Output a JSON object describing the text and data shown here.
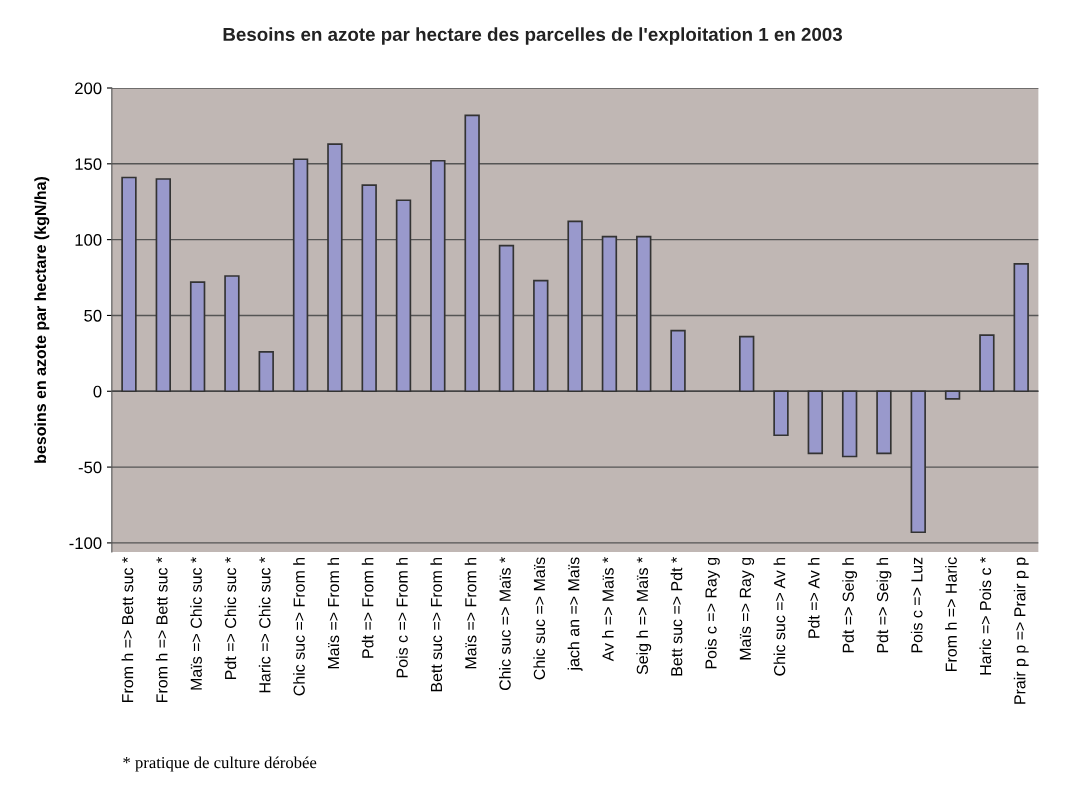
{
  "chart_data": {
    "type": "bar",
    "title": "Besoins en azote par hectare des parcelles de l'exploitation 1 en 2003",
    "ylabel": "besoins en azote par hectare (kgN/ha)",
    "categories": [
      "From h => Bett suc *",
      "From h => Bett suc *",
      "Maïs => Chic suc *",
      "Pdt => Chic suc *",
      "Haric => Chic suc *",
      "Chic suc => From h",
      "Maïs => From h",
      "Pdt => From h",
      "Pois c => From h",
      "Bett suc => From h",
      "Maïs => From h",
      "Chic suc => Maïs *",
      "Chic suc => Maïs",
      "jach an => Maïs",
      "Av h => Maïs *",
      "Seig h => Maïs *",
      "Bett suc => Pdt *",
      "Pois c => Ray g",
      "Maïs => Ray g",
      "Chic suc => Av h",
      "Pdt => Av h",
      "Pdt => Seig h",
      "Pdt => Seig h",
      "Pois c => Luz",
      "From h => Haric",
      "Haric => Pois c *",
      "Prair p p => Prair p p"
    ],
    "values": [
      141,
      140,
      72,
      76,
      26,
      153,
      163,
      136,
      126,
      152,
      182,
      96,
      73,
      112,
      102,
      102,
      40,
      null,
      36,
      -29,
      -41,
      -43,
      -41,
      -93,
      -5,
      37,
      84
    ],
    "color": "#9999cc",
    "ylim": [
      -106,
      200
    ],
    "yticks": [
      -100,
      -50,
      0,
      50,
      100,
      150,
      200
    ],
    "grid": "y",
    "legend": false,
    "annotations": [
      "* pratique de culture dérobée"
    ]
  }
}
